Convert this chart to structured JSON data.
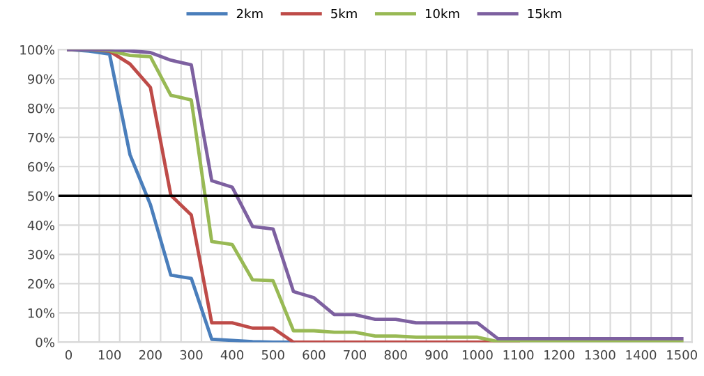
{
  "chart_data": {
    "type": "line",
    "categories": [
      "0",
      null,
      "100",
      null,
      "200",
      null,
      "300",
      null,
      "400",
      null,
      "500",
      null,
      "600",
      null,
      "700",
      null,
      "800",
      null,
      "900",
      null,
      "1000",
      null,
      "1100",
      null,
      "1200",
      null,
      "1300",
      null,
      "1400",
      null,
      "1500"
    ],
    "series": [
      {
        "name": "2km",
        "color": "#4a7ebb",
        "values": [
          100,
          99.5,
          98.5,
          64.1,
          47,
          22.9,
          21.8,
          1.0,
          0.6,
          0.2,
          0,
          0,
          null,
          null,
          null,
          null,
          null,
          null,
          null,
          null,
          null,
          null,
          null,
          null,
          null,
          null,
          null,
          null,
          null,
          null,
          null
        ]
      },
      {
        "name": "5km",
        "color": "#be4b48",
        "values": [
          100,
          100,
          99.5,
          95.1,
          87.1,
          50.2,
          43.5,
          6.6,
          6.6,
          4.8,
          4.8,
          0,
          0,
          0,
          0,
          0,
          0,
          0,
          0,
          0,
          0,
          0,
          0,
          null,
          null,
          null,
          null,
          null,
          null,
          null,
          null
        ]
      },
      {
        "name": "10km",
        "color": "#98b954",
        "values": [
          100,
          100,
          99.7,
          98,
          97.6,
          84.4,
          82.8,
          34.4,
          33.4,
          21.3,
          21,
          3.9,
          3.9,
          3.4,
          3.4,
          2.1,
          2.1,
          1.7,
          1.7,
          1.7,
          1.7,
          0.2,
          0.2,
          0.2,
          0.2,
          0.2,
          0.2,
          0.2,
          0.2,
          0.2,
          0.2
        ]
      },
      {
        "name": "15km",
        "color": "#7d60a0",
        "values": [
          100,
          100,
          100,
          99.6,
          99,
          96.4,
          94.8,
          55.2,
          53,
          39.5,
          38.7,
          17.3,
          15.2,
          9.4,
          9.4,
          7.8,
          7.8,
          6.6,
          6.6,
          6.6,
          6.6,
          1.2,
          1.2,
          1.2,
          1.2,
          1.2,
          1.2,
          1.2,
          1.2,
          1.2,
          1.2
        ]
      }
    ],
    "ylim": [
      0,
      100
    ],
    "yticks": [
      {
        "value": 0,
        "label": "0%"
      },
      {
        "value": 10,
        "label": "10%"
      },
      {
        "value": 20,
        "label": "20%"
      },
      {
        "value": 30,
        "label": "30%"
      },
      {
        "value": 40,
        "label": "40%"
      },
      {
        "value": 50,
        "label": "50%"
      },
      {
        "value": 60,
        "label": "60%"
      },
      {
        "value": 70,
        "label": "70%"
      },
      {
        "value": 80,
        "label": "80%"
      },
      {
        "value": 90,
        "label": "90%"
      },
      {
        "value": 100,
        "label": "100%"
      }
    ],
    "ref_lines": [
      {
        "axis": "y",
        "value": 50,
        "color": "#000000",
        "line_style": "solid"
      }
    ],
    "grid": true,
    "legend": "top",
    "marker": "none",
    "line_style": "solid"
  }
}
